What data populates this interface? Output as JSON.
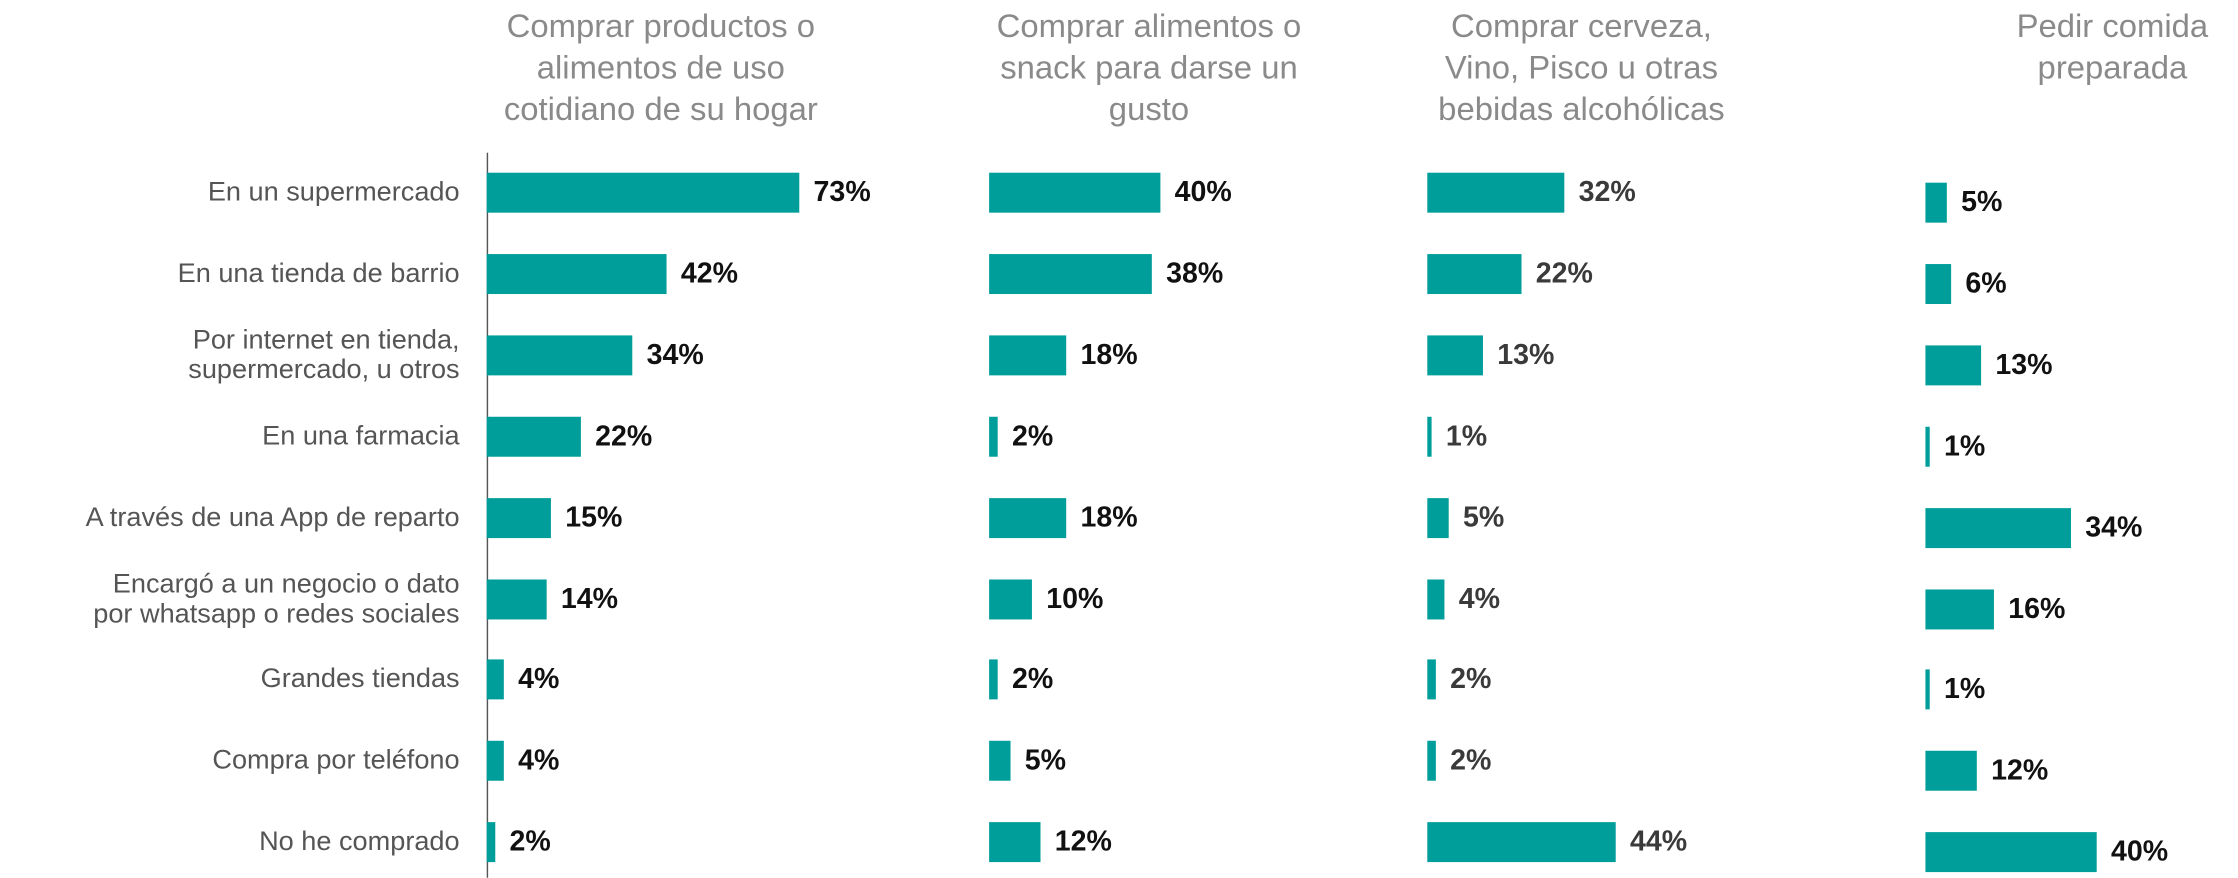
{
  "chart_data": [
    {
      "type": "bar",
      "title": "Comprar productos o\nalimentos de uso\ncotidiano de su hogar",
      "categories": [
        "En un supermercado",
        "En una tienda de barrio",
        "Por internet en tienda,\nsupermercado, u otros",
        "En una farmacia",
        "A través de una App de reparto",
        "Encargó a un negocio o dato\npor whatsapp o redes sociales",
        "Grandes tiendas",
        "Compra por teléfono",
        "No he comprado"
      ],
      "values": [
        73,
        42,
        34,
        22,
        15,
        14,
        4,
        4,
        2
      ],
      "value_labels": [
        "73%",
        "42%",
        "34%",
        "22%",
        "15%",
        "14%",
        "4%",
        "4%",
        "2%"
      ],
      "color": "#009e9a"
    },
    {
      "type": "bar",
      "title": "Comprar alimentos o\nsnack para darse un\ngusto",
      "values": [
        40,
        38,
        18,
        2,
        18,
        10,
        2,
        5,
        12
      ],
      "value_labels": [
        "40%",
        "38%",
        "18%",
        "2%",
        "18%",
        "10%",
        "2%",
        "5%",
        "12%"
      ],
      "color": "#009e9a"
    },
    {
      "type": "bar",
      "title": "Comprar cerveza,\nVino, Pisco u otras\nbebidas alcohólicas",
      "values": [
        32,
        22,
        13,
        1,
        5,
        4,
        2,
        2,
        44
      ],
      "value_labels": [
        "32%",
        "22%",
        "13%",
        "1%",
        "5%",
        "4%",
        "2%",
        "2%",
        "44%"
      ],
      "color": "#009e9a"
    },
    {
      "type": "bar",
      "title": "Pedir comida\npreparada",
      "values": [
        5,
        6,
        13,
        1,
        34,
        16,
        1,
        12,
        40
      ],
      "value_labels": [
        "5%",
        "6%",
        "13%",
        "1%",
        "34%",
        "16%",
        "1%",
        "12%",
        "40%"
      ],
      "color": "#009e9a"
    }
  ]
}
